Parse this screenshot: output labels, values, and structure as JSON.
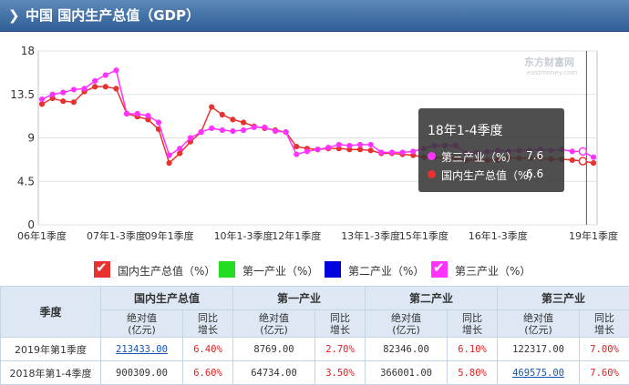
{
  "header": {
    "title": "中国 国内生产总值（GDP）",
    "chevron_icon": "chevron-right-icon"
  },
  "watermark": {
    "main": "东方财富网",
    "sub": "eastmoney.com"
  },
  "chart_data": {
    "type": "line",
    "ylim": [
      0,
      18
    ],
    "yticks": [
      "0",
      "4.5",
      "9",
      "13.5",
      "18"
    ],
    "xlabels": [
      "06年1季度",
      "07年1-3季度",
      "09年1季度",
      "10年1-3季度",
      "12年1季度",
      "13年1-3季度",
      "15年1季度",
      "16年1-3季度",
      "19年1季度"
    ],
    "series": [
      {
        "name": "国内生产总值（%）",
        "color": "#e8322f",
        "values": [
          12.5,
          13.1,
          12.8,
          12.7,
          13.8,
          14.3,
          14.3,
          14.1,
          11.5,
          11.2,
          10.9,
          9.9,
          6.4,
          7.4,
          8.6,
          9.6,
          12.2,
          11.4,
          10.9,
          10.6,
          10.2,
          10.0,
          9.8,
          9.6,
          8.1,
          7.9,
          7.8,
          7.9,
          7.9,
          7.8,
          7.8,
          7.7,
          7.4,
          7.4,
          7.3,
          7.2,
          7.0,
          7.0,
          6.9,
          6.9,
          6.7,
          6.7,
          6.7,
          6.7,
          6.9,
          6.9,
          6.9,
          6.9,
          6.8,
          6.8,
          6.7,
          6.6,
          6.4
        ]
      },
      {
        "name": "第一产业（%）",
        "color": "#00cc00",
        "values": []
      },
      {
        "name": "第二产业（%）",
        "color": "#0000dd",
        "values": []
      },
      {
        "name": "第三产业（%）",
        "color": "#ff33ff",
        "values": [
          13.0,
          13.5,
          13.7,
          14.0,
          14.1,
          14.9,
          15.5,
          16.0,
          11.5,
          11.5,
          11.3,
          10.6,
          7.2,
          7.9,
          9.0,
          9.6,
          10.0,
          9.8,
          9.7,
          9.8,
          10.1,
          10.1,
          9.7,
          9.6,
          7.3,
          7.6,
          7.8,
          8.0,
          8.3,
          8.2,
          8.3,
          8.3,
          7.5,
          7.5,
          7.5,
          7.6,
          7.9,
          8.2,
          8.2,
          8.2,
          7.4,
          7.5,
          7.6,
          7.7,
          7.6,
          7.7,
          7.7,
          7.8,
          7.7,
          7.8,
          7.6,
          7.6,
          7.0
        ]
      }
    ],
    "tooltip": {
      "title": "18年1-4季度",
      "items": [
        {
          "name": "第三产业（%）",
          "value": "7.6",
          "color": "#ff33ff"
        },
        {
          "name": "国内生产总值（%）",
          "value": "6.6",
          "color": "#e8322f"
        }
      ]
    }
  },
  "legend": [
    {
      "label": "国内生产总值（%）",
      "color": "#e8322f"
    },
    {
      "label": "第一产业（%）",
      "color": "#22dd22"
    },
    {
      "label": "第二产业（%）",
      "color": "#0000dd"
    },
    {
      "label": "第三产业（%）",
      "color": "#ff33ff"
    }
  ],
  "table": {
    "season_header": "季度",
    "groups": [
      "国内生产总值",
      "第一产业",
      "第二产业",
      "第三产业"
    ],
    "abs_header": "绝对值\n(亿元)",
    "yoy_header": "同比\n增长",
    "rows": [
      {
        "quarter": "2019年第1季度",
        "cells": [
          "213433.00",
          "6.40%",
          "8769.00",
          "2.70%",
          "82346.00",
          "6.10%",
          "122317.00",
          "7.00%"
        ]
      },
      {
        "quarter": "2018年第1-4季度",
        "cells": [
          "900309.00",
          "6.60%",
          "64734.00",
          "3.50%",
          "366001.00",
          "5.80%",
          "469575.00",
          "7.60%"
        ]
      }
    ]
  }
}
